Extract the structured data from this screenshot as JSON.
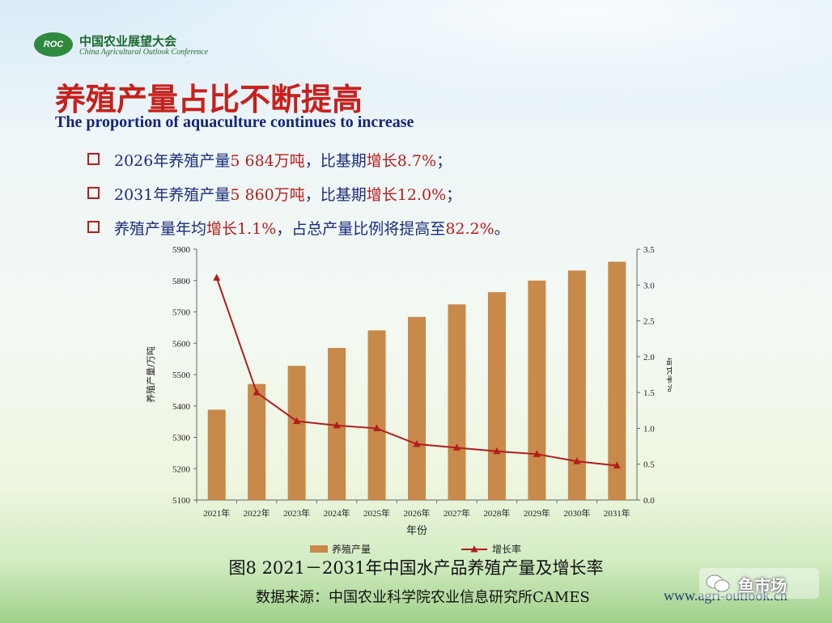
{
  "logo": {
    "badge": "ROC",
    "name_cn": "中国农业展望大会",
    "name_en": "China Agricultural Outlook Conference"
  },
  "title": {
    "cn": "养殖产量占比不断提高",
    "en": "The proportion of aquaculture continues to increase"
  },
  "bullets": [
    {
      "pre": "2026年养殖产量",
      "v1": "5 684万吨",
      "mid": "，比基期",
      "v2": "增长8.7%",
      "post": "；"
    },
    {
      "pre": "2031年养殖产量",
      "v1": "5 860万吨",
      "mid": "，比基期",
      "v2": "增长12.0%",
      "post": "；"
    },
    {
      "pre": "养殖产量年均",
      "v1": "增长1.1%",
      "mid": "，占总产量比例将提高至",
      "v2": "82.2%",
      "post": "。"
    }
  ],
  "caption": "图8   2021－2031年中国水产品养殖产量及增长率",
  "source": "数据来源：中国农业科学院农业信息研究所CAMES",
  "website": "www.agri-outlook.cn",
  "watermark": "鱼市场",
  "colors": {
    "bar": "#c8894a",
    "line": "#b01c1c",
    "title": "#c8201c",
    "text": "#1b2c7a"
  },
  "chart_data": {
    "type": "bar",
    "categories": [
      "2021年",
      "2022年",
      "2023年",
      "2024年",
      "2025年",
      "2026年",
      "2027年",
      "2028年",
      "2029年",
      "2030年",
      "2031年"
    ],
    "series": [
      {
        "name": "养殖产量",
        "type": "bar",
        "axis": "left",
        "values": [
          5388,
          5470,
          5528,
          5585,
          5641,
          5684,
          5724,
          5763,
          5800,
          5832,
          5860
        ]
      },
      {
        "name": "增长率",
        "type": "line",
        "axis": "right",
        "values": [
          3.1,
          1.5,
          1.1,
          1.04,
          1.0,
          0.78,
          0.73,
          0.68,
          0.64,
          0.54,
          0.48
        ]
      }
    ],
    "xlabel": "年份",
    "ylabel": "养殖产量/万吨",
    "y2label": "增长率%",
    "ylim": [
      5100,
      5900
    ],
    "y2lim": [
      0.0,
      3.5
    ],
    "yticks": [
      "5100",
      "5200",
      "5300",
      "5400",
      "5500",
      "5600",
      "5700",
      "5800",
      "5900"
    ],
    "y2ticks": [
      "0.0",
      "0.5",
      "1.0",
      "1.5",
      "2.0",
      "2.5",
      "3.0",
      "3.5"
    ],
    "legend_position": "bottom",
    "grid": false
  }
}
